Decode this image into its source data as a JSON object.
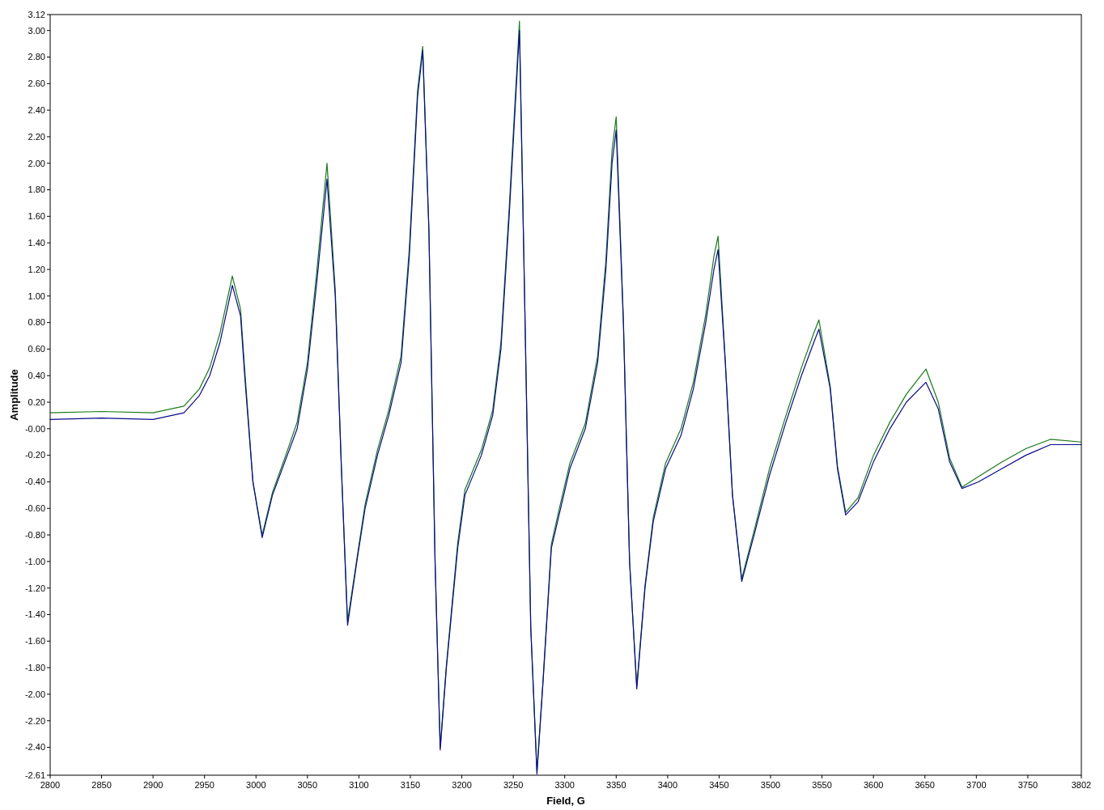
{
  "chart_data": {
    "type": "line",
    "xlabel": "Field, G",
    "ylabel": "Amplitude",
    "xlim": [
      2800,
      3802
    ],
    "ylim": [
      -2.61,
      3.12
    ],
    "xticks": [
      2800,
      2850,
      2900,
      2950,
      3000,
      3050,
      3100,
      3150,
      3200,
      3250,
      3300,
      3350,
      3400,
      3450,
      3500,
      3550,
      3600,
      3650,
      3700,
      3750,
      3802
    ],
    "yticks": [
      {
        "value": 3.12,
        "label": "3.12"
      },
      {
        "value": 3,
        "label": "3.00"
      },
      {
        "value": 2.8,
        "label": "2.80"
      },
      {
        "value": 2.6,
        "label": "2.60"
      },
      {
        "value": 2.4,
        "label": "2.40"
      },
      {
        "value": 2.2,
        "label": "2.20"
      },
      {
        "value": 2,
        "label": "2.00"
      },
      {
        "value": 1.8,
        "label": "1.80"
      },
      {
        "value": 1.6,
        "label": "1.60"
      },
      {
        "value": 1.4,
        "label": "1.40"
      },
      {
        "value": 1.2,
        "label": "1.20"
      },
      {
        "value": 1,
        "label": "1.00"
      },
      {
        "value": 0.8,
        "label": "0.80"
      },
      {
        "value": 0.6,
        "label": "0.60"
      },
      {
        "value": 0.4,
        "label": "0.40"
      },
      {
        "value": 0.2,
        "label": "0.20"
      },
      {
        "value": 0,
        "label": "-0.00"
      },
      {
        "value": -0.2,
        "label": "-0.20"
      },
      {
        "value": -0.4,
        "label": "-0.40"
      },
      {
        "value": -0.6,
        "label": "-0.60"
      },
      {
        "value": -0.8,
        "label": "-0.80"
      },
      {
        "value": -1,
        "label": "-1.00"
      },
      {
        "value": -1.2,
        "label": "-1.20"
      },
      {
        "value": -1.4,
        "label": "-1.40"
      },
      {
        "value": -1.6,
        "label": "-1.60"
      },
      {
        "value": -1.8,
        "label": "-1.80"
      },
      {
        "value": -2,
        "label": "-2.00"
      },
      {
        "value": -2.2,
        "label": "-2.20"
      },
      {
        "value": -2.4,
        "label": "-2.40"
      },
      {
        "value": -2.61,
        "label": "-2.61"
      }
    ],
    "x": [
      2800,
      2850,
      2900,
      2930,
      2945,
      2955,
      2965,
      2977,
      2985,
      2989,
      2997,
      3006,
      3016,
      3028,
      3040,
      3050,
      3059,
      3069,
      3077,
      3083,
      3089,
      3098,
      3106,
      3118,
      3129,
      3141,
      3149,
      3157,
      3162,
      3168,
      3174,
      3179,
      3185,
      3196,
      3203,
      3219,
      3230,
      3238,
      3246,
      3256,
      3261,
      3267,
      3273,
      3279,
      3287,
      3293,
      3305,
      3320,
      3332,
      3340,
      3346,
      3350,
      3357,
      3363,
      3370,
      3378,
      3386,
      3398,
      3413,
      3425,
      3437,
      3445,
      3449,
      3456,
      3463,
      3472,
      3484,
      3499,
      3515,
      3530,
      3542,
      3547,
      3558,
      3565,
      3573,
      3585,
      3600,
      3616,
      3632,
      3651,
      3663,
      3674,
      3686,
      3702,
      3725,
      3748,
      3772,
      3802
    ],
    "series": [
      {
        "color": "#1a7a1a",
        "values": [
          0.12,
          0.13,
          0.12,
          0.17,
          0.3,
          0.46,
          0.72,
          1.15,
          0.9,
          0.45,
          -0.4,
          -0.8,
          -0.48,
          -0.22,
          0.05,
          0.5,
          1.18,
          2.0,
          1.05,
          -0.3,
          -1.45,
          -0.98,
          -0.57,
          -0.16,
          0.14,
          0.55,
          1.36,
          2.55,
          2.88,
          1.5,
          -1.0,
          -2.4,
          -1.78,
          -0.86,
          -0.46,
          -0.16,
          0.14,
          0.65,
          1.66,
          3.07,
          1.0,
          -1.5,
          -2.58,
          -1.88,
          -0.87,
          -0.66,
          -0.26,
          0.04,
          0.55,
          1.27,
          2.1,
          2.35,
          0.82,
          -1.0,
          -1.94,
          -1.18,
          -0.67,
          -0.26,
          0.0,
          0.35,
          0.86,
          1.3,
          1.45,
          0.52,
          -0.5,
          -1.13,
          -0.77,
          -0.3,
          0.1,
          0.46,
          0.72,
          0.82,
          0.32,
          -0.28,
          -0.63,
          -0.52,
          -0.2,
          0.05,
          0.26,
          0.45,
          0.2,
          -0.22,
          -0.44,
          -0.36,
          -0.25,
          -0.15,
          -0.08,
          -0.1
        ]
      },
      {
        "color": "#0a0a8c",
        "values": [
          0.07,
          0.08,
          0.07,
          0.12,
          0.25,
          0.4,
          0.65,
          1.08,
          0.85,
          0.4,
          -0.4,
          -0.82,
          -0.5,
          -0.25,
          0.0,
          0.45,
          1.1,
          1.88,
          1.0,
          -0.3,
          -1.48,
          -1.0,
          -0.6,
          -0.2,
          0.1,
          0.5,
          1.3,
          2.5,
          2.85,
          1.5,
          -1.0,
          -2.42,
          -1.8,
          -0.9,
          -0.5,
          -0.2,
          0.1,
          0.6,
          1.6,
          3.0,
          1.0,
          -1.5,
          -2.6,
          -1.9,
          -0.9,
          -0.7,
          -0.3,
          0.0,
          0.5,
          1.2,
          2.0,
          2.25,
          0.8,
          -1.0,
          -1.96,
          -1.2,
          -0.7,
          -0.3,
          -0.05,
          0.3,
          0.8,
          1.2,
          1.35,
          0.5,
          -0.5,
          -1.15,
          -0.8,
          -0.35,
          0.05,
          0.4,
          0.65,
          0.75,
          0.3,
          -0.3,
          -0.65,
          -0.55,
          -0.25,
          0.0,
          0.2,
          0.35,
          0.15,
          -0.25,
          -0.45,
          -0.4,
          -0.3,
          -0.2,
          -0.12,
          -0.12
        ]
      }
    ]
  }
}
